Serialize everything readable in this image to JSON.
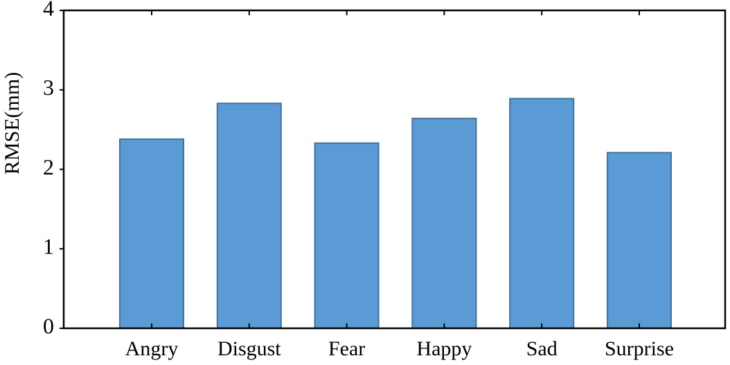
{
  "chart_data": {
    "type": "bar",
    "y_label": "RMSE(mm)",
    "categories": [
      "Angry",
      "Disgust",
      "Fear",
      "Happy",
      "Sad",
      "Surprise"
    ],
    "values": [
      2.38,
      2.83,
      2.33,
      2.64,
      2.89,
      2.21
    ],
    "color": "#5b9bd5",
    "edge_color": "#41719c",
    "ylim": [
      0,
      4
    ],
    "yticks": [
      0,
      1,
      2,
      3,
      4
    ],
    "grid": false
  }
}
